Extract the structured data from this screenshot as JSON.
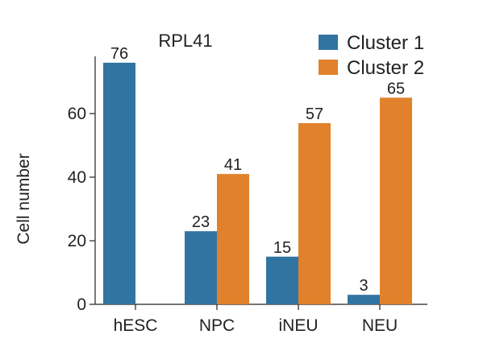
{
  "chart_data": {
    "type": "bar",
    "title": "RPL41",
    "xlabel": "",
    "ylabel": "Cell number",
    "categories": [
      "hESC",
      "NPC",
      "iNEU",
      "NEU"
    ],
    "series": [
      {
        "name": "Cluster 1",
        "color": "#3274a1",
        "values": [
          76,
          23,
          15,
          3
        ]
      },
      {
        "name": "Cluster 2",
        "color": "#e1812c",
        "values": [
          null,
          41,
          57,
          65
        ]
      }
    ],
    "data_labels": [
      [
        "76",
        "23",
        "15",
        "3"
      ],
      [
        "",
        "41",
        "57",
        "65"
      ]
    ],
    "ylim": [
      0,
      78
    ],
    "yticks": [
      0,
      20,
      40,
      60
    ],
    "legend_position": "top-right",
    "grid": false
  }
}
